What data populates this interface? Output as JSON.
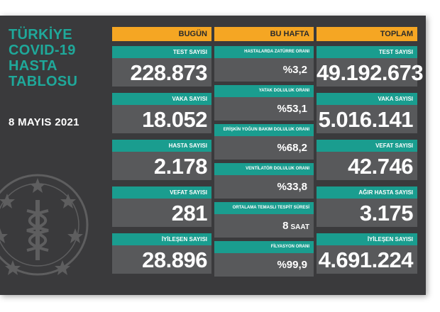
{
  "title_lines": [
    "TÜRKİYE",
    "COVID-19",
    "HASTA",
    "TABLOSU"
  ],
  "date": "8 MAYIS 2021",
  "colors": {
    "board": "#3a3a3c",
    "header": "#f5a623",
    "label": "#1a9d8f",
    "value_bg": "#58595b",
    "title": "#1fa89a"
  },
  "today": {
    "header": "BUGÜN",
    "items": [
      {
        "label": "TEST SAYISI",
        "value": "228.873"
      },
      {
        "label": "VAKA SAYISI",
        "value": "18.052"
      },
      {
        "label": "HASTA SAYISI",
        "value": "2.178"
      },
      {
        "label": "VEFAT SAYISI",
        "value": "281"
      },
      {
        "label": "İYİLEŞEN SAYISI",
        "value": "28.896"
      }
    ]
  },
  "week": {
    "header": "BU HAFTA",
    "items": [
      {
        "label": "HASTALARDA ZATÜRRE ORANI",
        "value": "%3,2",
        "unit": ""
      },
      {
        "label": "YATAK DOLULUK ORANI",
        "value": "%53,1",
        "unit": ""
      },
      {
        "label": "ERİŞKİN YOĞUN BAKIM DOLULUK ORANI",
        "value": "%68,2",
        "unit": ""
      },
      {
        "label": "VENTİLATÖR DOLULUK ORANI",
        "value": "%33,8",
        "unit": ""
      },
      {
        "label": "ORTALAMA TEMASLI TESPİT SÜRESİ",
        "value": "8",
        "unit": "SAAT"
      },
      {
        "label": "FİLYASYON ORANI",
        "value": "%99,9",
        "unit": ""
      }
    ]
  },
  "total": {
    "header": "TOPLAM",
    "items": [
      {
        "label": "TEST SAYISI",
        "value": "49.192.673"
      },
      {
        "label": "VAKA SAYISI",
        "value": "5.016.141"
      },
      {
        "label": "VEFAT SAYISI",
        "value": "42.746"
      },
      {
        "label": "AĞIR HASTA SAYISI",
        "value": "3.175"
      },
      {
        "label": "İYİLEŞEN SAYISI",
        "value": "4.691.224"
      }
    ]
  }
}
